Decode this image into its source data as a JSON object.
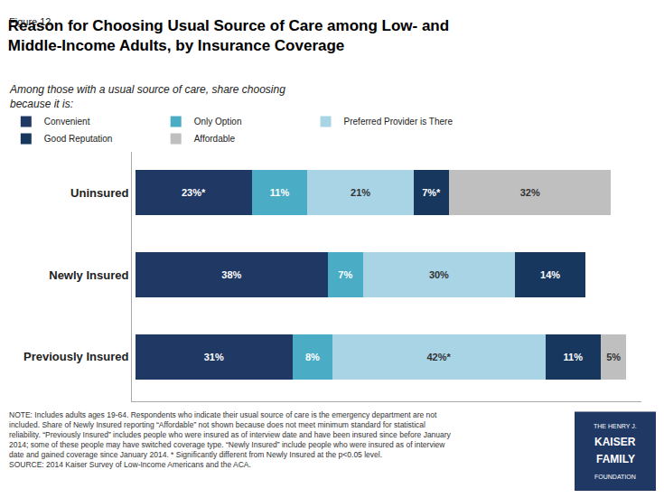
{
  "chart_data": {
    "type": "bar",
    "orientation": "horizontal",
    "stacked": true,
    "label": "Figure 12",
    "title": "Reason for Choosing Usual Source of Care among Low- and\nMiddle-Income Adults, by Insurance Coverage",
    "subtitle": "Among those with a usual source of care, share choosing\nbecause it is:",
    "categories": [
      "Uninsured",
      "Newly Insured",
      "Previously Insured"
    ],
    "series": [
      {
        "name": "Convenient",
        "color": "#1f3864",
        "values": [
          23,
          38,
          31
        ],
        "value_labels": [
          "23%*",
          "38%",
          "31%"
        ]
      },
      {
        "name": "Only Option",
        "color": "#4bacc6",
        "values": [
          11,
          7,
          8
        ],
        "value_labels": [
          "11%",
          "7%",
          "8%"
        ]
      },
      {
        "name": "Preferred Provider is There",
        "color": "#a8d4e6",
        "values": [
          21,
          30,
          42
        ],
        "value_labels": [
          "21%",
          "30%",
          "42%*"
        ]
      },
      {
        "name": "Good Reputation",
        "color": "#17375e",
        "values": [
          7,
          14,
          11
        ],
        "value_labels": [
          "7%*",
          "14%",
          "11%"
        ]
      },
      {
        "name": "Affordable",
        "color": "#bfbfbf",
        "values": [
          32,
          0,
          5
        ],
        "value_labels": [
          "32%",
          null,
          "5%"
        ]
      }
    ],
    "xlim": [
      0,
      100
    ],
    "xticks": [],
    "tick_labels": "y",
    "grid": false,
    "legend": "top",
    "data_labels": true,
    "note": "NOTE: Includes adults ages 19-64. Respondents who indicate their usual source of care is the emergency department are not\nincluded. Share of Newly Insured reporting “Affordable” not shown because does not meet minimum standard for statistical\nreliability. “Previously Insured” includes people who were insured as of interview date and have been insured since before January\n2014; some of these people may have switched coverage type. “Newly Insured” include people who were insured as of interview\ndate and gained coverage since January 2014. * Significantly different from Newly Insured at the p<0.05 level.\nSOURCE: 2014 Kaiser Survey of Low-Income Americans and the ACA.",
    "logo": [
      "THE HENRY J.",
      "KAISER",
      "FAMILY",
      "FOUNDATION"
    ],
    "logo_color": "#1f3864"
  }
}
